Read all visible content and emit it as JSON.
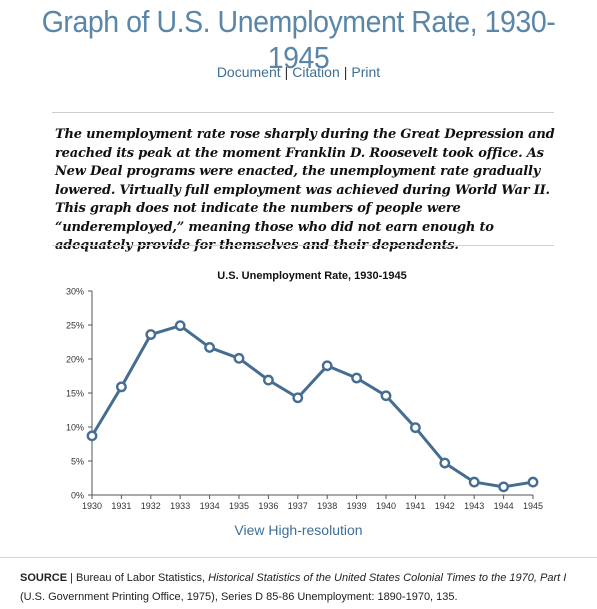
{
  "page": {
    "title": "Graph of U.S. Unemployment Rate, 1930-1945",
    "links": [
      "Document",
      "Citation",
      "Print"
    ],
    "separator": "|",
    "description": "The unemployment rate rose sharply during the Great Depression and reached its peak at the moment Franklin D. Roosevelt took office. As New Deal programs were enacted, the unemployment rate gradually lowered. Virtually full employment was achieved during World War II. This graph does not indicate the numbers of people were “underemployed,” meaning those who did not earn enough to adequately provide for themselves and their dependents.",
    "hires_link": "View High-resolution",
    "source": {
      "label": "SOURCE",
      "sep": " | ",
      "text1": "Bureau of Labor Statistics, ",
      "italic": "Historical Statistics of the United States Colonial Times to the 1970, Part I",
      "text2": " (U.S. Government Printing Office, 1975), Series D 85-86 Unemployment: 1890-1970, 135."
    }
  },
  "colors": {
    "title": "#5a86a8",
    "link": "#3e6f98",
    "line": "#456d92",
    "axis": "#555555",
    "grid": "#e6e6e6"
  },
  "chart_data": {
    "type": "line",
    "title": "U.S. Unemployment Rate, 1930-1945",
    "x": [
      "1930",
      "1931",
      "1932",
      "1933",
      "1934",
      "1935",
      "1936",
      "1937",
      "1938",
      "1939",
      "1940",
      "1941",
      "1942",
      "1943",
      "1944",
      "1945"
    ],
    "y_tick_labels": [
      "0%",
      "5%",
      "10%",
      "15%",
      "20%",
      "25%",
      "30%"
    ],
    "ylim": [
      0,
      30
    ],
    "ytick_step": 5,
    "grid": false,
    "series": [
      {
        "values": [
          8.7,
          15.9,
          23.6,
          24.9,
          21.7,
          20.1,
          16.9,
          14.3,
          19.0,
          17.2,
          14.6,
          9.9,
          4.7,
          1.9,
          1.2,
          1.9
        ]
      }
    ]
  }
}
